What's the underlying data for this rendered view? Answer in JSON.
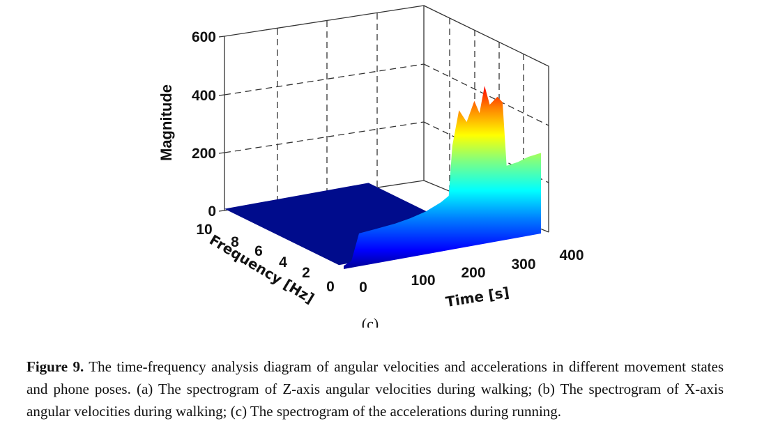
{
  "chart_data": {
    "type": "surface",
    "panel_label": "(c)",
    "zlabel": "Magnitude",
    "xlabel": "Time [s]",
    "ylabel": "Frequency [Hz]",
    "x_ticks": [
      "0",
      "100",
      "200",
      "300",
      "400"
    ],
    "y_ticks": [
      "10",
      "8",
      "6",
      "4",
      "2",
      "0"
    ],
    "z_ticks": [
      "0",
      "200",
      "400",
      "600"
    ],
    "xlim": [
      0,
      400
    ],
    "ylim": [
      0,
      10
    ],
    "zlim": [
      0,
      600
    ],
    "grid": true,
    "colormap": [
      "#00008f",
      "#0000ff",
      "#0080ff",
      "#00ffff",
      "#80ff80",
      "#ffff00",
      "#ff8000",
      "#ff0000",
      "#800000"
    ],
    "zero_frequency_magnitude": [
      {
        "time": 0,
        "magnitude": 10
      },
      {
        "time": 15,
        "magnitude": 20
      },
      {
        "time": 30,
        "magnitude": 100
      },
      {
        "time": 60,
        "magnitude": 104
      },
      {
        "time": 100,
        "magnitude": 110
      },
      {
        "time": 130,
        "magnitude": 118
      },
      {
        "time": 160,
        "magnitude": 130
      },
      {
        "time": 190,
        "magnitude": 150
      },
      {
        "time": 205,
        "magnitude": 165
      },
      {
        "time": 212,
        "magnitude": 315
      },
      {
        "time": 225,
        "magnitude": 420
      },
      {
        "time": 240,
        "magnitude": 380
      },
      {
        "time": 255,
        "magnitude": 440
      },
      {
        "time": 265,
        "magnitude": 400
      },
      {
        "time": 275,
        "magnitude": 480
      },
      {
        "time": 285,
        "magnitude": 420
      },
      {
        "time": 300,
        "magnitude": 440
      },
      {
        "time": 310,
        "magnitude": 420
      },
      {
        "time": 318,
        "magnitude": 225
      },
      {
        "time": 340,
        "magnitude": 230
      },
      {
        "time": 360,
        "magnitude": 240
      },
      {
        "time": 385,
        "magnitude": 245
      }
    ],
    "nonzero_frequency_magnitude": 5
  },
  "caption": {
    "label": "Figure 9.",
    "lines": [
      "The time-frequency analysis diagram of angular velocities and accelerations in different",
      "movement states and phone poses. (a) The spectrogram of Z-axis angular velocities during walking;",
      "(b) The spectrogram of X-axis angular velocities during walking; (c) The spectrogram of the",
      "accelerations during running."
    ]
  }
}
